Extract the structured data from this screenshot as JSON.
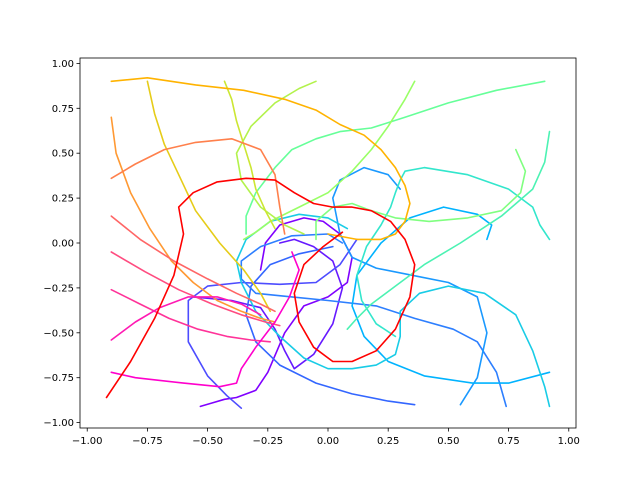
{
  "chart_data": {
    "type": "line",
    "title": "",
    "xlabel": "",
    "ylabel": "",
    "xlim": [
      -1.03,
      1.03
    ],
    "ylim": [
      -1.03,
      1.03
    ],
    "grid": false,
    "legend": "none",
    "colormap": "rainbow",
    "xticks": [
      -1.0,
      -0.75,
      -0.5,
      -0.25,
      0.0,
      0.25,
      0.5,
      0.75,
      1.0
    ],
    "yticks": [
      -1.0,
      -0.75,
      -0.5,
      -0.25,
      0.0,
      0.25,
      0.5,
      0.75,
      1.0
    ],
    "xtick_labels": [
      "−1.00",
      "−0.75",
      "−0.50",
      "−0.25",
      "0.00",
      "0.25",
      "0.50",
      "0.75",
      "1.00"
    ],
    "ytick_labels": [
      "−1.00",
      "−0.75",
      "−0.50",
      "−0.25",
      "0.00",
      "0.25",
      "0.50",
      "0.75",
      "1.00"
    ],
    "series": [
      {
        "color": "#8000ff",
        "x": [
          -0.53,
          -0.48,
          -0.43,
          -0.38,
          -0.3,
          -0.25,
          -0.18,
          -0.1,
          0.0,
          0.08,
          0.1,
          0.05,
          -0.02,
          -0.1,
          -0.2,
          -0.26,
          -0.28
        ],
        "y": [
          -0.91,
          -0.89,
          -0.87,
          -0.86,
          -0.82,
          -0.72,
          -0.5,
          -0.35,
          -0.3,
          -0.22,
          -0.08,
          0.05,
          0.12,
          0.14,
          0.1,
          0.0,
          -0.15
        ]
      },
      {
        "color": "#6619ff",
        "x": [
          -0.56,
          -0.4,
          -0.28,
          -0.22,
          -0.18,
          -0.14,
          -0.06,
          0.02,
          0.06,
          0.02,
          -0.06,
          -0.14,
          -0.2
        ],
        "y": [
          -0.3,
          -0.32,
          -0.36,
          -0.48,
          -0.6,
          -0.7,
          -0.62,
          -0.45,
          -0.25,
          -0.1,
          -0.02,
          0.02,
          0.0
        ]
      },
      {
        "color": "#4d4cff",
        "x": [
          -0.36,
          -0.42,
          -0.5,
          -0.58,
          -0.58,
          -0.5,
          -0.36,
          -0.2,
          -0.05,
          0.05,
          0.12
        ],
        "y": [
          -0.92,
          -0.85,
          -0.74,
          -0.55,
          -0.32,
          -0.24,
          -0.22,
          -0.23,
          -0.22,
          -0.12,
          0.02
        ]
      },
      {
        "color": "#3366ff",
        "x": [
          0.36,
          0.25,
          0.1,
          -0.05,
          -0.2,
          -0.3,
          -0.34,
          -0.32,
          -0.24,
          -0.12,
          0.02
        ],
        "y": [
          -0.9,
          -0.88,
          -0.84,
          -0.78,
          -0.68,
          -0.55,
          -0.4,
          -0.24,
          -0.12,
          -0.06,
          -0.02
        ]
      },
      {
        "color": "#2d7fff",
        "x": [
          0.74,
          0.7,
          0.62,
          0.52,
          0.36,
          0.2,
          0.0,
          -0.15,
          -0.3,
          -0.36,
          -0.36,
          -0.28,
          -0.15,
          0.0,
          0.06
        ],
        "y": [
          -0.91,
          -0.72,
          -0.55,
          -0.48,
          -0.42,
          -0.35,
          -0.32,
          -0.3,
          -0.28,
          -0.2,
          -0.1,
          -0.02,
          0.04,
          0.05,
          0.0
        ]
      },
      {
        "color": "#1a99ff",
        "x": [
          0.55,
          0.62,
          0.66,
          0.62,
          0.5,
          0.35,
          0.2,
          0.1,
          0.05,
          0.02,
          0.05,
          0.15,
          0.25,
          0.3
        ],
        "y": [
          -0.9,
          -0.75,
          -0.5,
          -0.3,
          -0.22,
          -0.18,
          -0.14,
          -0.08,
          0.05,
          0.25,
          0.35,
          0.42,
          0.38,
          0.3
        ]
      },
      {
        "color": "#00b3ff",
        "x": [
          0.92,
          0.75,
          0.6,
          0.4,
          0.25,
          0.15,
          0.1,
          0.12,
          0.22,
          0.34,
          0.48,
          0.62,
          0.68,
          0.66
        ],
        "y": [
          -0.72,
          -0.78,
          -0.78,
          -0.74,
          -0.66,
          -0.52,
          -0.35,
          -0.18,
          0.0,
          0.14,
          0.2,
          0.16,
          0.1,
          0.02
        ]
      },
      {
        "color": "#19cce6",
        "x": [
          0.92,
          0.9,
          0.85,
          0.78,
          0.65,
          0.5,
          0.38,
          0.3,
          0.3,
          0.28,
          0.2,
          0.1,
          0.0,
          -0.1,
          -0.2,
          -0.3,
          -0.36,
          -0.38,
          -0.34,
          -0.24,
          -0.12,
          0.0,
          0.08
        ],
        "y": [
          -0.91,
          -0.8,
          -0.6,
          -0.4,
          -0.28,
          -0.24,
          -0.28,
          -0.38,
          -0.52,
          -0.62,
          -0.68,
          -0.7,
          -0.7,
          -0.64,
          -0.52,
          -0.38,
          -0.22,
          -0.1,
          0.02,
          0.12,
          0.16,
          0.14,
          0.08
        ]
      },
      {
        "color": "#33e6cc",
        "x": [
          0.92,
          0.88,
          0.85,
          0.75,
          0.58,
          0.4,
          0.32,
          0.3,
          0.28,
          0.26,
          0.22,
          0.16,
          0.12,
          0.14,
          0.2,
          0.28
        ],
        "y": [
          0.02,
          0.1,
          0.2,
          0.3,
          0.38,
          0.42,
          0.4,
          0.35,
          0.28,
          0.2,
          0.1,
          -0.02,
          -0.18,
          -0.32,
          -0.45,
          -0.52
        ]
      },
      {
        "color": "#4cf2b3",
        "x": [
          0.92,
          0.9,
          0.85,
          0.72,
          0.55,
          0.4,
          0.28,
          0.18,
          0.12,
          0.08
        ],
        "y": [
          0.62,
          0.45,
          0.3,
          0.15,
          0.0,
          -0.12,
          -0.24,
          -0.34,
          -0.42,
          -0.48
        ]
      },
      {
        "color": "#66ff99",
        "x": [
          0.9,
          0.7,
          0.5,
          0.32,
          0.18,
          0.05,
          -0.05,
          -0.15,
          -0.22,
          -0.3,
          -0.34,
          -0.34
        ],
        "y": [
          0.9,
          0.85,
          0.78,
          0.7,
          0.64,
          0.62,
          0.58,
          0.52,
          0.42,
          0.28,
          0.15,
          0.05
        ]
      },
      {
        "color": "#80ff80",
        "x": [
          0.78,
          0.82,
          0.8,
          0.72,
          0.58,
          0.42,
          0.28,
          0.18,
          0.1,
          0.02,
          -0.05,
          -0.05
        ],
        "y": [
          0.52,
          0.4,
          0.28,
          0.18,
          0.14,
          0.12,
          0.14,
          0.18,
          0.22,
          0.2,
          0.12,
          0.02
        ]
      },
      {
        "color": "#99ff66",
        "x": [
          0.36,
          0.32,
          0.25,
          0.18,
          0.1,
          0.0,
          -0.12,
          -0.24,
          -0.3,
          -0.35
        ],
        "y": [
          0.9,
          0.8,
          0.65,
          0.52,
          0.4,
          0.28,
          0.2,
          0.12,
          0.06,
          0.02
        ]
      },
      {
        "color": "#b3f24c",
        "x": [
          -0.05,
          -0.12,
          -0.22,
          -0.32,
          -0.38,
          -0.36,
          -0.28,
          -0.18,
          -0.1
        ],
        "y": [
          0.9,
          0.86,
          0.78,
          0.65,
          0.5,
          0.35,
          0.2,
          0.1,
          0.05
        ]
      },
      {
        "color": "#cce633",
        "x": [
          -0.43,
          -0.4,
          -0.38,
          -0.35,
          -0.32,
          -0.3,
          -0.26,
          -0.22
        ],
        "y": [
          0.9,
          0.8,
          0.68,
          0.55,
          0.42,
          0.3,
          0.18,
          0.08
        ]
      },
      {
        "color": "#e6cc19",
        "x": [
          -0.75,
          -0.72,
          -0.68,
          -0.62,
          -0.55,
          -0.45,
          -0.35,
          -0.28,
          -0.24
        ],
        "y": [
          0.9,
          0.72,
          0.55,
          0.38,
          0.18,
          0.0,
          -0.15,
          -0.28,
          -0.38
        ]
      },
      {
        "color": "#ffb300",
        "x": [
          -0.9,
          -0.75,
          -0.55,
          -0.35,
          -0.18,
          -0.05,
          0.05,
          0.15,
          0.22,
          0.28,
          0.32,
          0.34,
          0.32,
          0.28,
          0.22,
          0.12,
          0.0
        ],
        "y": [
          0.9,
          0.92,
          0.88,
          0.85,
          0.8,
          0.74,
          0.66,
          0.6,
          0.52,
          0.42,
          0.32,
          0.22,
          0.12,
          0.05,
          0.02,
          0.02,
          0.05
        ]
      },
      {
        "color": "#ff9933",
        "x": [
          -0.9,
          -0.88,
          -0.82,
          -0.74,
          -0.65,
          -0.56,
          -0.46,
          -0.36,
          -0.28,
          -0.22
        ],
        "y": [
          0.7,
          0.5,
          0.28,
          0.08,
          -0.1,
          -0.22,
          -0.32,
          -0.38,
          -0.42,
          -0.44
        ]
      },
      {
        "color": "#ff804c",
        "x": [
          -0.9,
          -0.8,
          -0.68,
          -0.55,
          -0.4,
          -0.28,
          -0.22,
          -0.2,
          -0.18
        ],
        "y": [
          0.36,
          0.44,
          0.52,
          0.56,
          0.58,
          0.52,
          0.38,
          0.2,
          0.05
        ]
      },
      {
        "color": "#ff6666",
        "x": [
          -0.9,
          -0.78,
          -0.64,
          -0.5,
          -0.38,
          -0.28,
          -0.22
        ],
        "y": [
          0.15,
          0.02,
          -0.1,
          -0.2,
          -0.28,
          -0.34,
          -0.38
        ]
      },
      {
        "color": "#ff4c80",
        "x": [
          -0.9,
          -0.76,
          -0.62,
          -0.48,
          -0.36,
          -0.26,
          -0.2
        ],
        "y": [
          -0.05,
          -0.16,
          -0.26,
          -0.34,
          -0.4,
          -0.44,
          -0.46
        ]
      },
      {
        "color": "#ff3399",
        "x": [
          -0.9,
          -0.78,
          -0.66,
          -0.54,
          -0.42,
          -0.32,
          -0.24
        ],
        "y": [
          -0.26,
          -0.34,
          -0.42,
          -0.48,
          -0.52,
          -0.54,
          -0.55
        ]
      },
      {
        "color": "#ff1ab3",
        "x": [
          -0.9,
          -0.8,
          -0.7,
          -0.58,
          -0.46,
          -0.36,
          -0.28
        ],
        "y": [
          -0.54,
          -0.44,
          -0.36,
          -0.3,
          -0.3,
          -0.34,
          -0.4
        ]
      },
      {
        "color": "#ff00cc",
        "x": [
          -0.9,
          -0.8,
          -0.6,
          -0.45,
          -0.38,
          -0.36,
          -0.3,
          -0.22,
          -0.16,
          -0.12,
          -0.15
        ],
        "y": [
          -0.72,
          -0.75,
          -0.78,
          -0.8,
          -0.78,
          -0.7,
          -0.58,
          -0.44,
          -0.3,
          -0.15,
          -0.05
        ]
      },
      {
        "color": "#ff0000",
        "x": [
          -0.92,
          -0.82,
          -0.72,
          -0.64,
          -0.6,
          -0.62,
          -0.56,
          -0.46,
          -0.34,
          -0.22,
          -0.14,
          -0.06,
          0.02,
          0.1,
          0.18,
          0.26,
          0.32,
          0.36,
          0.34,
          0.28,
          0.2,
          0.1,
          0.02,
          -0.06,
          -0.12,
          -0.14,
          -0.1,
          -0.02,
          0.06
        ],
        "y": [
          -0.86,
          -0.66,
          -0.42,
          -0.18,
          0.05,
          0.2,
          0.28,
          0.34,
          0.36,
          0.35,
          0.28,
          0.22,
          0.2,
          0.2,
          0.18,
          0.12,
          0.02,
          -0.12,
          -0.3,
          -0.48,
          -0.6,
          -0.66,
          -0.66,
          -0.58,
          -0.44,
          -0.28,
          -0.12,
          -0.02,
          0.06
        ]
      }
    ]
  }
}
